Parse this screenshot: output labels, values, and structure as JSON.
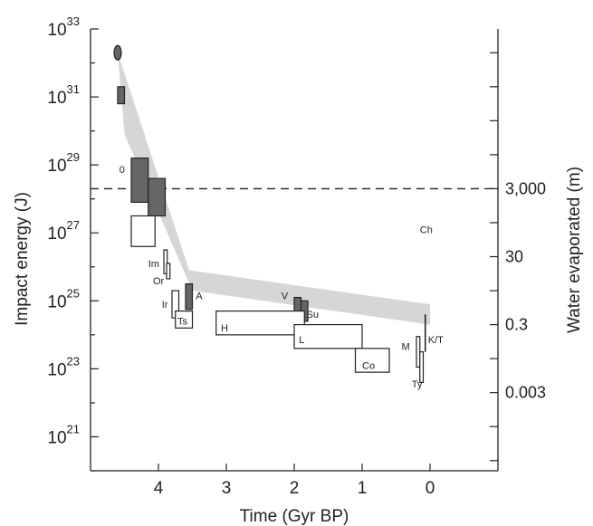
{
  "chart_data": {
    "type": "scatter",
    "title": "",
    "xlabel": "Time (Gyr BP)",
    "ylabel": "Impact energy (J)",
    "y2label": "Water evaporated (m)",
    "x_reversed": true,
    "xlim": [
      5.0,
      -1.0
    ],
    "ylim_log10": [
      20,
      33
    ],
    "x_ticks": [
      "4",
      "3",
      "2",
      "1",
      "0"
    ],
    "x_tick_values": [
      4,
      3,
      2,
      1,
      0
    ],
    "y_tick_labels": [
      {
        "base": "10",
        "exp": "33",
        "value": 33
      },
      {
        "base": "10",
        "exp": "31",
        "value": 31
      },
      {
        "base": "10",
        "exp": "29",
        "value": 29
      },
      {
        "base": "10",
        "exp": "27",
        "value": 27
      },
      {
        "base": "10",
        "exp": "25",
        "value": 25
      },
      {
        "base": "10",
        "exp": "23",
        "value": 23
      },
      {
        "base": "10",
        "exp": "21",
        "value": 21
      }
    ],
    "y2_ticks": [
      {
        "label": "3,000",
        "log10_energy": 28.3
      },
      {
        "label": "30",
        "log10_energy": 26.3
      },
      {
        "label": "0.3",
        "log10_energy": 24.3
      },
      {
        "label": "0.003",
        "log10_energy": 22.3
      }
    ],
    "dashed_threshold_log10": 28.3,
    "band": {
      "upper": [
        [
          4.6,
          32.3
        ],
        [
          3.55,
          25.9
        ],
        [
          0,
          24.9
        ]
      ],
      "lower": [
        [
          4.5,
          29.9
        ],
        [
          3.5,
          25.3
        ],
        [
          0,
          24.3
        ]
      ]
    },
    "events": [
      {
        "label": "",
        "style": "filled-ellipse",
        "x": 4.6,
        "logE": 32.3
      },
      {
        "label": "",
        "style": "filled",
        "x": [
          4.5,
          4.6
        ],
        "logE": [
          30.8,
          31.3
        ]
      },
      {
        "label": "0",
        "style": "text",
        "x": 4.55,
        "logE": 28.9
      },
      {
        "label": "",
        "style": "filled",
        "x": [
          4.15,
          4.4
        ],
        "logE": [
          27.9,
          29.2
        ]
      },
      {
        "label": "",
        "style": "filled",
        "x": [
          3.9,
          4.15
        ],
        "logE": [
          27.5,
          28.6
        ]
      },
      {
        "label": "",
        "style": "open",
        "x": [
          4.05,
          4.4
        ],
        "logE": [
          26.6,
          27.5
        ]
      },
      {
        "label": "Ch",
        "style": "text",
        "x": -0.2,
        "logE": 27.1
      },
      {
        "label": "Im",
        "style": "open",
        "x": [
          3.87,
          3.92
        ],
        "logE": [
          25.8,
          26.5
        ]
      },
      {
        "label": "Or",
        "style": "open",
        "x": [
          3.83,
          3.88
        ],
        "logE": [
          25.65,
          26.1
        ]
      },
      {
        "label": "Ir",
        "style": "open",
        "x": [
          3.7,
          3.8
        ],
        "logE": [
          24.5,
          25.3
        ]
      },
      {
        "label": "A",
        "style": "filled",
        "x": [
          3.5,
          3.6
        ],
        "logE": [
          24.75,
          25.5
        ]
      },
      {
        "label": "Ts",
        "style": "open",
        "x": [
          3.5,
          3.75
        ],
        "logE": [
          24.2,
          24.7
        ]
      },
      {
        "label": "V",
        "style": "filled",
        "x": [
          1.9,
          2.0
        ],
        "logE": [
          24.6,
          25.1
        ]
      },
      {
        "label": "Su",
        "style": "filled",
        "x": [
          1.8,
          1.9
        ],
        "logE": [
          24.4,
          25.0
        ]
      },
      {
        "label": "H",
        "style": "open",
        "x": [
          1.85,
          3.15
        ],
        "logE": [
          24.0,
          24.7
        ]
      },
      {
        "label": "L",
        "style": "open",
        "x": [
          1.0,
          2.0
        ],
        "logE": [
          23.6,
          24.3
        ]
      },
      {
        "label": "Co",
        "style": "open",
        "x": [
          0.6,
          1.1
        ],
        "logE": [
          22.9,
          23.6
        ]
      },
      {
        "label": "M",
        "style": "open",
        "x": [
          0.15,
          0.2
        ],
        "logE": [
          23.05,
          23.95
        ]
      },
      {
        "label": "Ty",
        "style": "open",
        "x": [
          0.1,
          0.15
        ],
        "logE": [
          22.6,
          23.5
        ]
      },
      {
        "label": "K/T",
        "style": "line",
        "x": 0.07,
        "logE": [
          23.5,
          24.6
        ]
      }
    ]
  }
}
